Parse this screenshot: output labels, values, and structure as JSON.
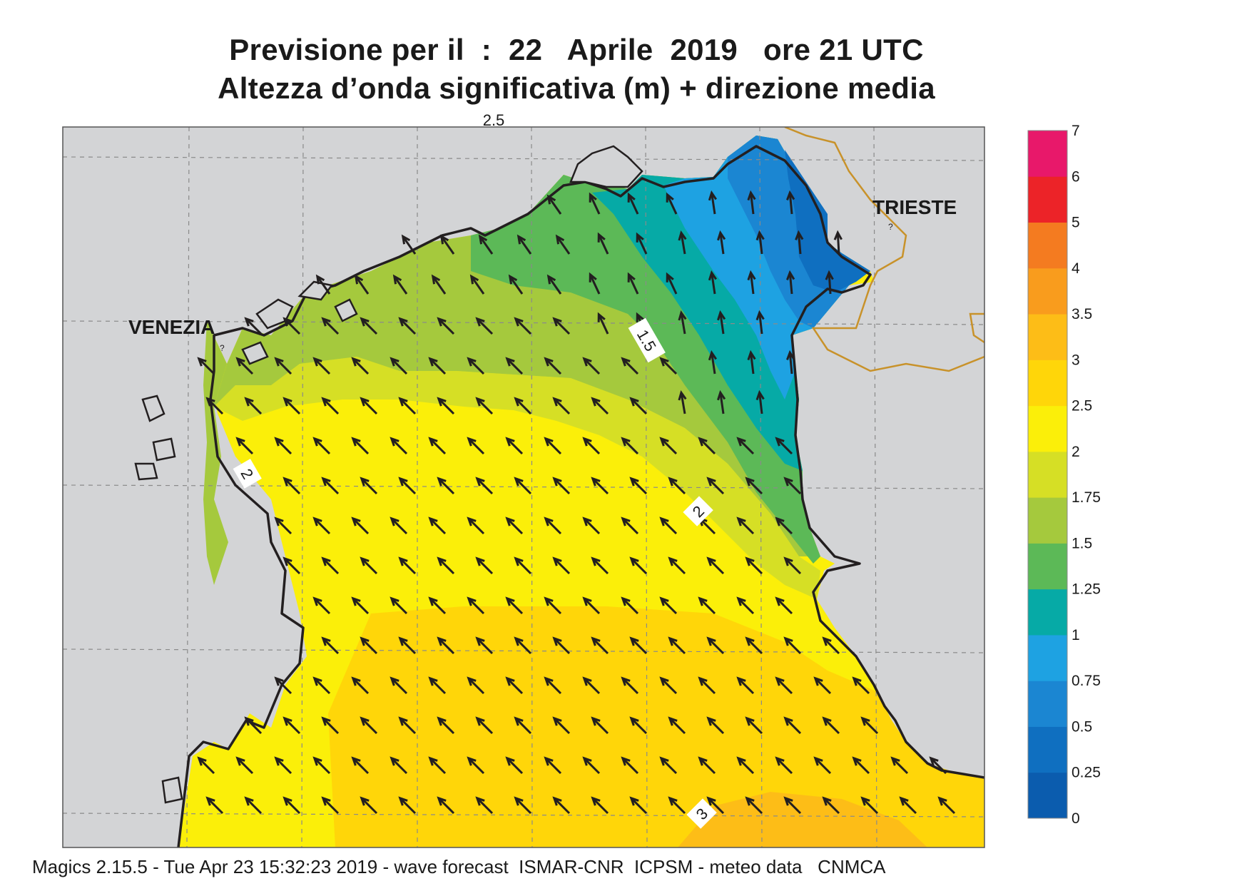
{
  "title": {
    "line1": "Previsione per il  :  22   Aprile  2019   ore 21 UTC",
    "line2": "Altezza d’onda significativa (m) + direzione media"
  },
  "footer": "Magics 2.15.5 - Tue Apr 23 15:32:23 2019 - wave forecast  ISMAR-CNR  ICPSM - meteo data   CNMCA",
  "cities": [
    {
      "name": "VENEZIA"
    },
    {
      "name": "TRIESTE"
    }
  ],
  "contour_labels": [
    "2.5",
    "1.5",
    "2",
    "2",
    "3"
  ],
  "colorbar": {
    "levels": [
      "0",
      "0.25",
      "0.5",
      "0.75",
      "1",
      "1.25",
      "1.5",
      "1.75",
      "2",
      "2.5",
      "3",
      "3.5",
      "4",
      "5",
      "6",
      "7"
    ],
    "colors": [
      "#0b5cae",
      "#0f6fc0",
      "#1b86d2",
      "#1ea2e2",
      "#06aaa6",
      "#5cb957",
      "#a5c93d",
      "#d6df25",
      "#fbef09",
      "#ffd609",
      "#fdbd17",
      "#f99c1d",
      "#f47b20",
      "#ec2328",
      "#e8186a"
    ]
  },
  "colors": {
    "land": "#d3d4d6",
    "coast": "#231f20",
    "border": "#c8922a",
    "arrow": "#231f20"
  },
  "wave_direction_arrows": "black arrows showing mean wave direction"
}
